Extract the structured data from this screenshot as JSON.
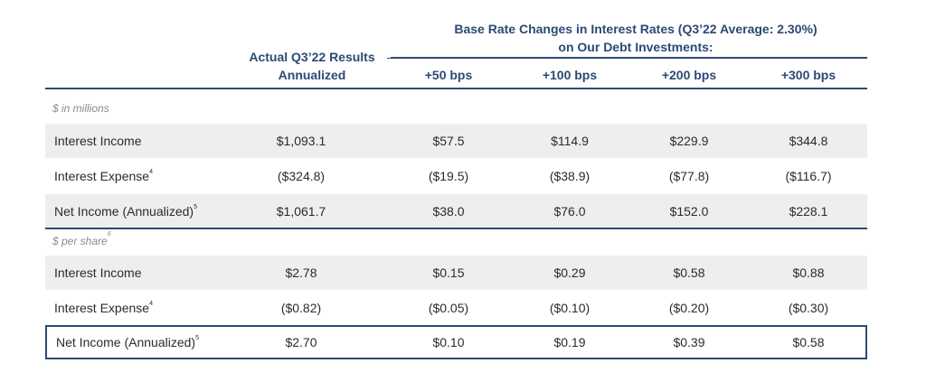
{
  "header": {
    "actual_line1": "Actual Q3’22 Results",
    "actual_line2": "Annualized",
    "base_line1": "Base Rate Changes in Interest Rates (Q3’22 Average: 2.30%)",
    "base_line2": "on Our Debt Investments:",
    "columns": [
      "+50 bps",
      "+100 bps",
      "+200 bps",
      "+300 bps"
    ]
  },
  "sections": [
    {
      "label": "$ in millions",
      "label_sup": "",
      "rows": [
        {
          "label": "Interest Income",
          "sup": "",
          "values": [
            "$1,093.1",
            "$57.5",
            "$114.9",
            "$229.9",
            "$344.8"
          ]
        },
        {
          "label": "Interest Expense",
          "sup": "4",
          "values": [
            "($324.8)",
            "($19.5)",
            "($38.9)",
            "($77.8)",
            "($116.7)"
          ]
        },
        {
          "label": "Net Income (Annualized)",
          "sup": "5",
          "values": [
            "$1,061.7",
            "$38.0",
            "$76.0",
            "$152.0",
            "$228.1"
          ]
        }
      ]
    },
    {
      "label": "$ per share",
      "label_sup": "6",
      "rows": [
        {
          "label": "Interest Income",
          "sup": "",
          "values": [
            "$2.78",
            "$0.15",
            "$0.29",
            "$0.58",
            "$0.88"
          ]
        },
        {
          "label": "Interest Expense",
          "sup": "4",
          "values": [
            "($0.82)",
            "($0.05)",
            "($0.10)",
            "($0.20)",
            "($0.30)"
          ]
        },
        {
          "label": "Net Income (Annualized)",
          "sup": "5",
          "values": [
            "$2.70",
            "$0.10",
            "$0.19",
            "$0.39",
            "$0.58"
          ]
        }
      ]
    }
  ],
  "colors": {
    "accent": "#2c4a73",
    "row_shade": "#eeeeee"
  }
}
